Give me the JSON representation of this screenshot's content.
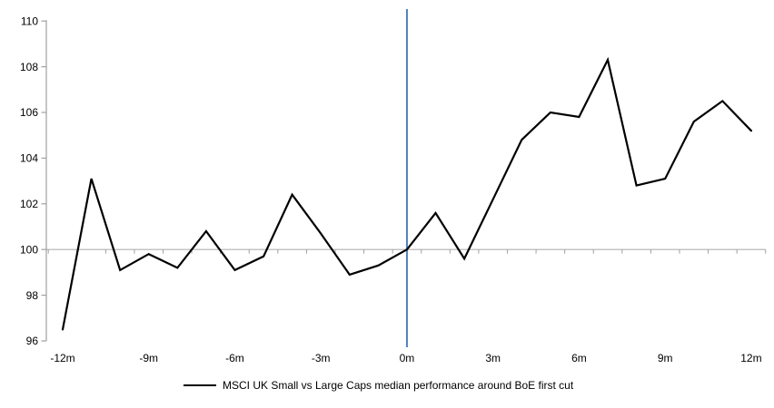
{
  "chart_data": {
    "type": "line",
    "title": "",
    "xlabel": "",
    "ylabel": "",
    "x": [
      -12,
      -11,
      -10,
      -9,
      -8,
      -7,
      -6,
      -5,
      -4,
      -3,
      -2,
      -1,
      0,
      1,
      2,
      3,
      4,
      5,
      6,
      7,
      8,
      9,
      10,
      11,
      12
    ],
    "series": [
      {
        "name": "MSCI UK Small vs Large Caps median performance around BoE first cut",
        "values": [
          96.5,
          103.1,
          99.1,
          99.8,
          99.2,
          100.8,
          99.1,
          99.7,
          102.4,
          100.7,
          98.9,
          99.3,
          100.0,
          101.6,
          99.6,
          102.2,
          104.8,
          106.0,
          105.8,
          108.3,
          102.8,
          103.1,
          105.6,
          106.5,
          105.2
        ],
        "color": "#000000"
      }
    ],
    "y_ticks": [
      96,
      98,
      100,
      102,
      104,
      106,
      108,
      110
    ],
    "x_tick_label_months": [
      -12,
      -9,
      -6,
      -3,
      0,
      3,
      6,
      9,
      12
    ],
    "x_tick_labels": [
      "-12m",
      "-9m",
      "-6m",
      "-3m",
      "0m",
      "3m",
      "6m",
      "9m",
      "12m"
    ],
    "ylim": [
      96,
      110
    ],
    "baseline_value": 100,
    "event_line_month": 0,
    "grid": "baseline-only",
    "legend_position": "bottom",
    "colors": {
      "series_line": "#000000",
      "event_line": "#4F81BD",
      "baseline_axis": "#B0B0B0",
      "axis": "#A0A0A0",
      "text": "#000000"
    }
  },
  "legend": {
    "label": "MSCI UK Small vs Large Caps median performance around BoE first cut"
  }
}
